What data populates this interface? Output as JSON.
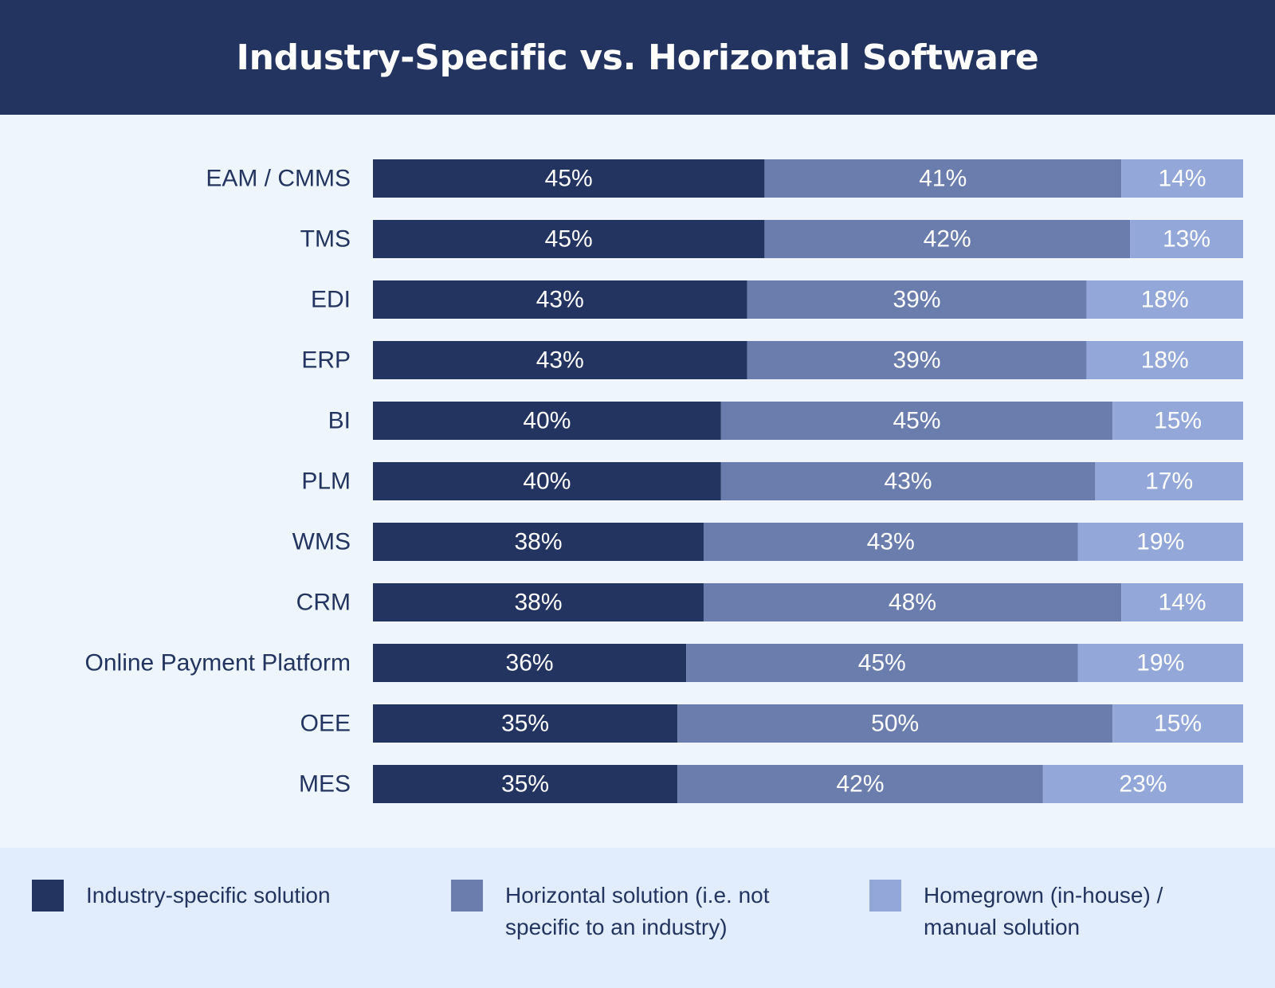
{
  "header": {
    "title": "Industry-Specific vs. Horizontal Software"
  },
  "colors": {
    "header_bg": "#22345f",
    "background": "#eef5fd",
    "legend_bg": "#e1edfc",
    "label_text": "#22345f",
    "segment_text": "#ffffff"
  },
  "chart_data": {
    "type": "bar",
    "orientation": "horizontal",
    "stacked": true,
    "title": "Industry-Specific vs. Horizontal Software",
    "xlim": [
      0,
      100
    ],
    "grid": false,
    "legend_position": "bottom",
    "categories": [
      "EAM / CMMS",
      "TMS",
      "EDI",
      "ERP",
      "BI",
      "PLM",
      "WMS",
      "CRM",
      "Online Payment Platform",
      "OEE",
      "MES"
    ],
    "series": [
      {
        "name": "Industry-specific solution",
        "color": "#22345f",
        "values": [
          45,
          45,
          43,
          43,
          40,
          40,
          38,
          38,
          36,
          35,
          35
        ],
        "labels": [
          "45%",
          "45%",
          "43%",
          "43%",
          "40%",
          "40%",
          "38%",
          "38%",
          "36%",
          "35%",
          "35%"
        ]
      },
      {
        "name": "Horizontal solution (i.e. not specific to an industry)",
        "color": "#6a7dad",
        "values": [
          41,
          42,
          39,
          39,
          45,
          43,
          43,
          48,
          45,
          50,
          42
        ],
        "labels": [
          "41%",
          "42%",
          "39%",
          "39%",
          "45%",
          "43%",
          "43%",
          "48%",
          "45%",
          "50%",
          "42%"
        ]
      },
      {
        "name": "Homegrown (in-house) / manual solution",
        "color": "#93a8d8",
        "values": [
          14,
          13,
          18,
          18,
          15,
          17,
          19,
          14,
          19,
          15,
          23
        ],
        "labels": [
          "14%",
          "13%",
          "18%",
          "18%",
          "15%",
          "17%",
          "19%",
          "14%",
          "19%",
          "15%",
          "23%"
        ]
      }
    ]
  }
}
